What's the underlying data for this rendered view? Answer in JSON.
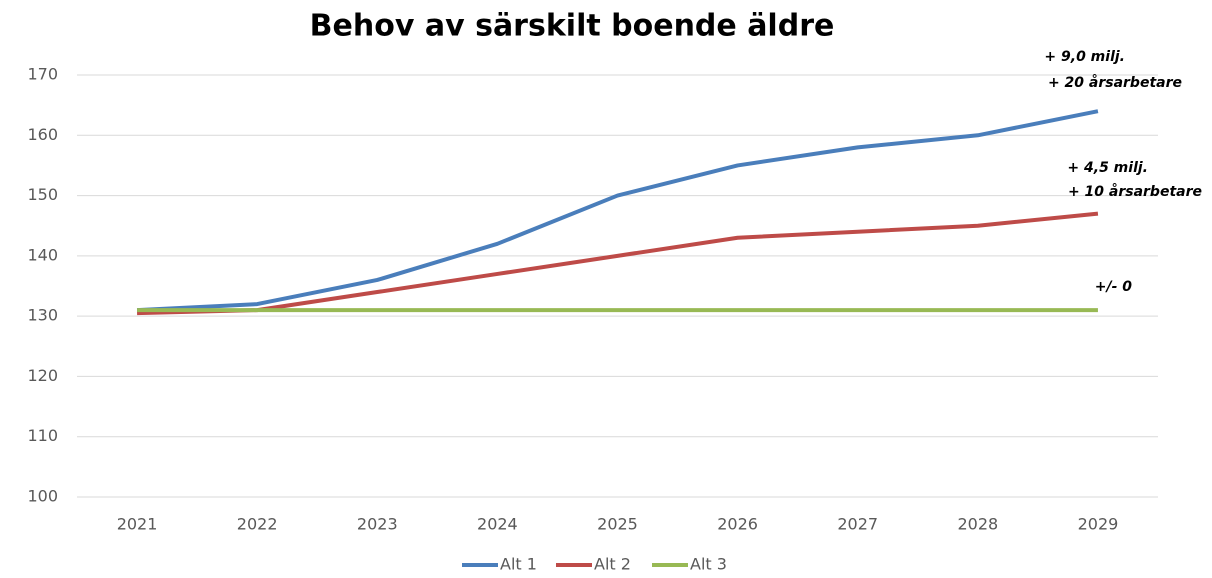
{
  "chart_data": {
    "type": "line",
    "title": "Behov av särskilt boende äldre",
    "categories": [
      "2021",
      "2022",
      "2023",
      "2024",
      "2025",
      "2026",
      "2027",
      "2028",
      "2029"
    ],
    "series": [
      {
        "name": "Alt 1",
        "color": "#4a7ebb",
        "values": [
          131,
          132,
          136,
          142,
          150,
          155,
          158,
          160,
          164
        ]
      },
      {
        "name": "Alt 2",
        "color": "#be4b48",
        "values": [
          130.5,
          131,
          134,
          137,
          140,
          143,
          144,
          145,
          147
        ]
      },
      {
        "name": "Alt 3",
        "color": "#98b954",
        "values": [
          131,
          131,
          131,
          131,
          131,
          131,
          131,
          131,
          131
        ]
      }
    ],
    "ylim": [
      100,
      170
    ],
    "yticks": [
      100,
      110,
      120,
      130,
      140,
      150,
      160,
      170
    ],
    "grid": true,
    "legend": "bottom",
    "annotations": [
      "+ 9,0 milj.",
      "+ 20 årsarbetare",
      "+ 4,5 milj.",
      "+ 10 årsarbetare",
      "+/- 0"
    ]
  }
}
